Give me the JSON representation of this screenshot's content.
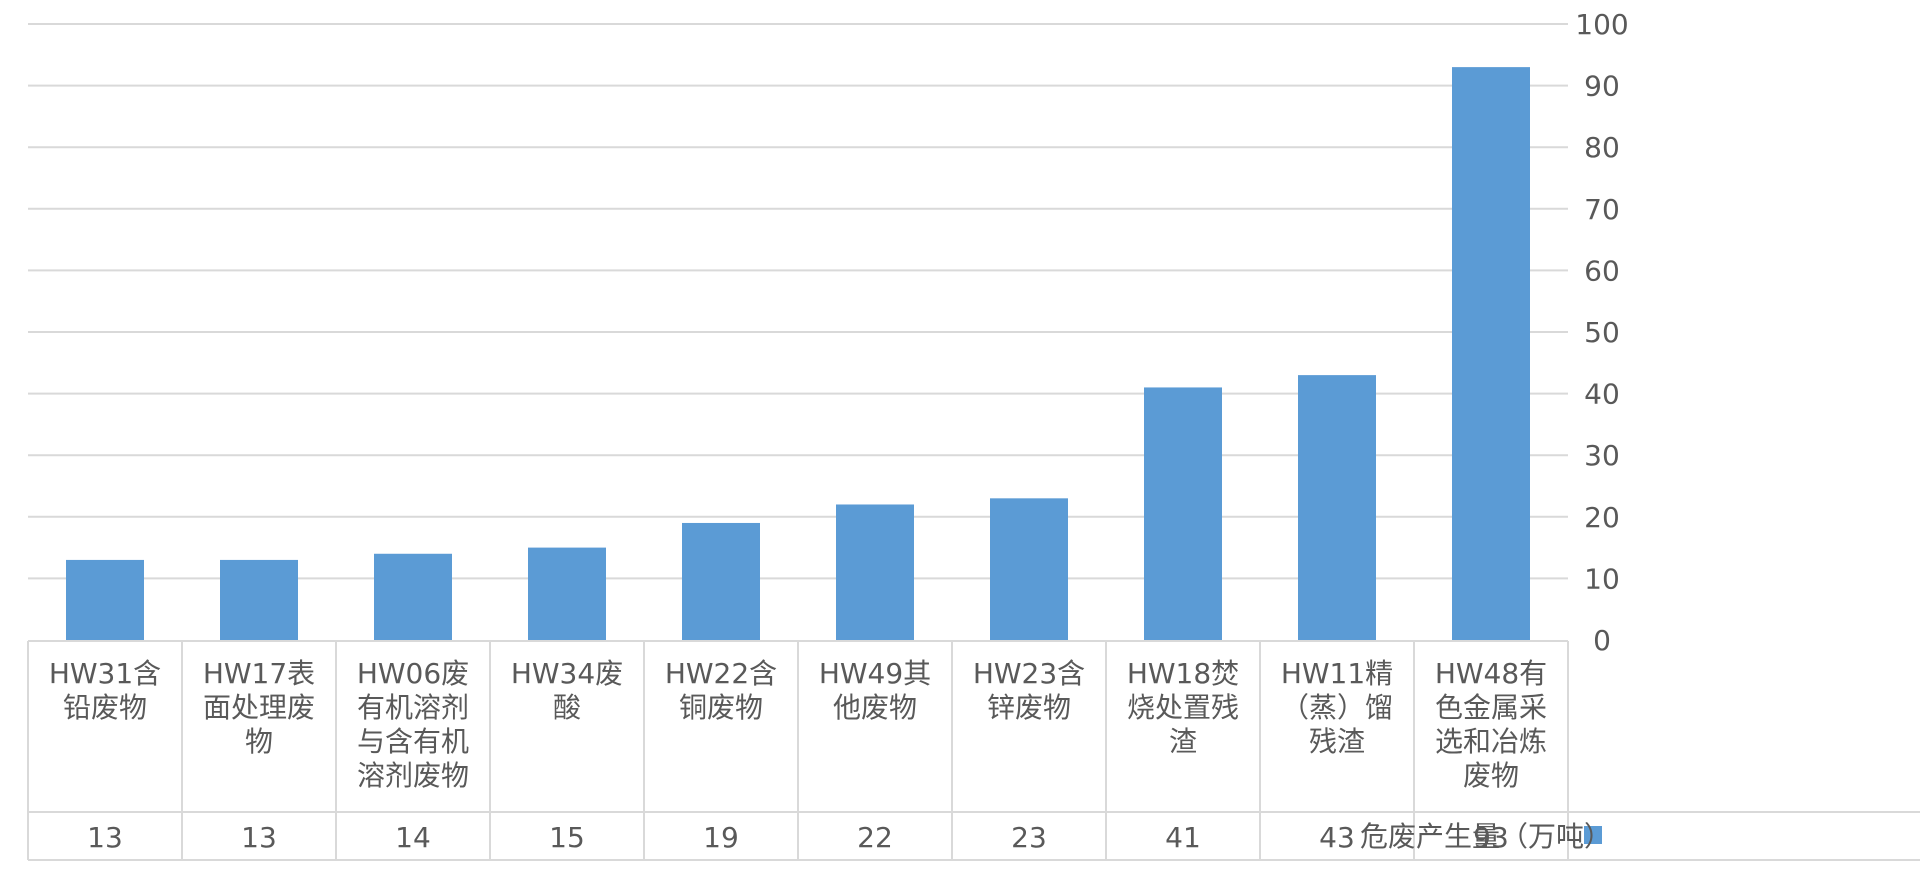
{
  "chart_data": {
    "type": "bar",
    "mirrored": true,
    "categories": [
      "HW48有色金属采选和冶炼废物",
      "HW11精（蒸）馏残渣",
      "HW18焚烧处置残渣",
      "HW23含锌废物",
      "HW49其他废物",
      "HW22含铜废物",
      "HW34废酸",
      "HW06废有机溶剂与含有机溶剂废物",
      "HW17表面处理废物",
      "HW31含铅废物"
    ],
    "category_lines": [
      [
        "HW48有",
        "色金属采",
        "选和冶炼",
        "废物"
      ],
      [
        "HW11精",
        "（蒸）馏",
        "残渣"
      ],
      [
        "HW18焚",
        "烧处置残",
        "渣"
      ],
      [
        "HW23含",
        "锌废物"
      ],
      [
        "HW49其",
        "他废物"
      ],
      [
        "HW22含",
        "铜废物"
      ],
      [
        "HW34废",
        "酸"
      ],
      [
        "HW06废",
        "有机溶剂",
        "与含有机",
        "溶剂废物"
      ],
      [
        "HW17表",
        "面处理废",
        "物"
      ],
      [
        "HW31含",
        "铅废物"
      ]
    ],
    "series": [
      {
        "name": "危废产生量（万吨）",
        "values": [
          93,
          43,
          41,
          23,
          22,
          19,
          15,
          14,
          13,
          13
        ],
        "color": "#5b9bd5"
      }
    ],
    "ylim": [
      0,
      100
    ],
    "yticks": [
      "0",
      "10",
      "20",
      "30",
      "40",
      "50",
      "60",
      "70",
      "80",
      "90",
      "100"
    ],
    "grid": true,
    "legend": "data-table-left",
    "data_table": true
  }
}
